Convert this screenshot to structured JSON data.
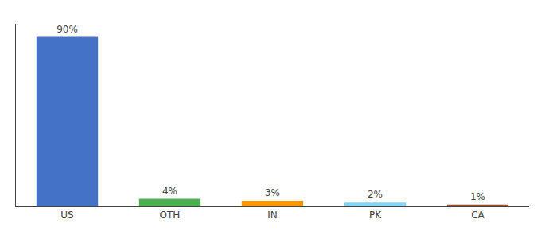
{
  "chart_data": {
    "type": "bar",
    "categories": [
      "US",
      "OTH",
      "IN",
      "PK",
      "CA"
    ],
    "values": [
      90,
      4,
      3,
      2,
      1
    ],
    "value_labels": [
      "90%",
      "4%",
      "3%",
      "2%",
      "1%"
    ],
    "colors": [
      "#4472c4",
      "#4caf50",
      "#ff9800",
      "#81d4fa",
      "#a0522d"
    ],
    "ylim": [
      0,
      97
    ],
    "data_labels": true,
    "tick_labels": "x",
    "grid": false
  }
}
